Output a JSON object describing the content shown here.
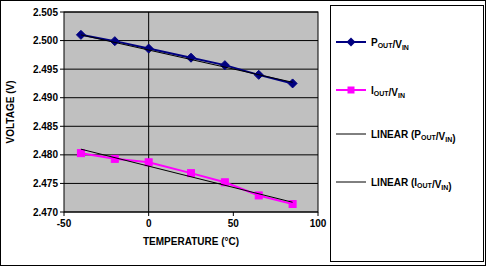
{
  "chart_data": {
    "type": "line",
    "xlabel": "TEMPERATURE (°C)",
    "ylabel": "VOLTAGE (V)",
    "xlim": [
      -50,
      100
    ],
    "xticks": [
      -50,
      0,
      50,
      100
    ],
    "ylim": [
      2.47,
      2.505
    ],
    "yticks": [
      {
        "value": 2.47,
        "label": "2.470"
      },
      2.475,
      {
        "value": 2.48,
        "label": "2.480"
      },
      2.485,
      {
        "value": 2.49,
        "label": "2.490"
      },
      2.495,
      {
        "value": 2.5,
        "label": "2.500"
      },
      2.505
    ],
    "grid": true,
    "legend": "right",
    "series": [
      {
        "name": "POUT/VIN",
        "color": "#000080",
        "marker": "diamond",
        "line_style": "solid",
        "x": [
          -40,
          -20,
          0,
          25,
          45,
          65,
          85
        ],
        "values": [
          2.501,
          2.4999,
          2.4986,
          2.497,
          2.4957,
          2.494,
          2.4925
        ]
      },
      {
        "name": "IOUT/VIN",
        "color": "#ff00ff",
        "marker": "square",
        "line_style": "solid",
        "x": [
          -40,
          -20,
          0,
          25,
          45,
          65,
          85
        ],
        "values": [
          2.4803,
          2.4793,
          2.4787,
          2.4768,
          2.4752,
          2.4729,
          2.4714
        ]
      },
      {
        "name": "LINEAR (POUT/VIN)",
        "color": "#000000",
        "marker": "none",
        "line_style": "solid",
        "x": [
          -40,
          85
        ],
        "values": [
          2.501,
          2.4927
        ]
      },
      {
        "name": "LINEAR (IOUT/VIN)",
        "color": "#000000",
        "marker": "none",
        "line_style": "solid",
        "x": [
          -40,
          85
        ],
        "values": [
          2.481,
          2.4717
        ]
      }
    ]
  }
}
